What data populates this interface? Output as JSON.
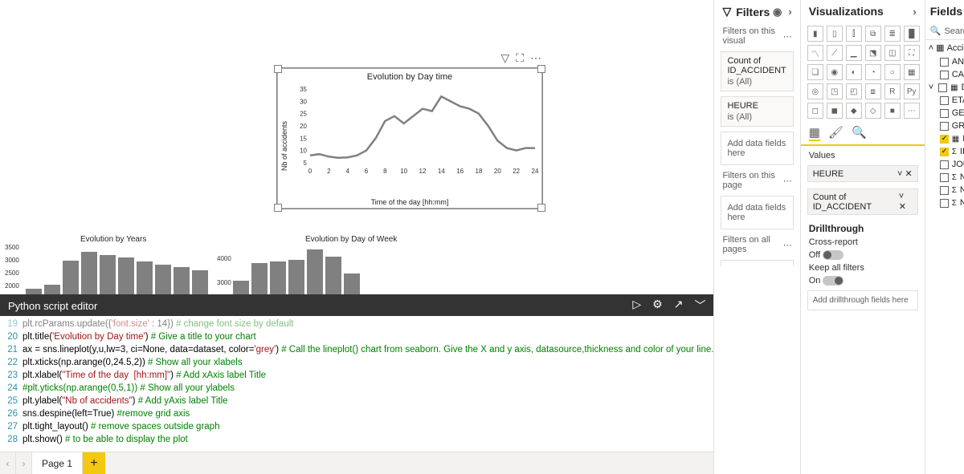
{
  "filters": {
    "title": "Filters",
    "visual_label": "Filters on this visual",
    "page_label": "Filters on this page",
    "all_label": "Filters on all pages",
    "add_placeholder": "Add data fields here",
    "cards": [
      {
        "field": "Count of ID_ACCIDENT",
        "state": "is (All)"
      },
      {
        "field": "HEURE",
        "state": "is (All)"
      }
    ]
  },
  "viz": {
    "title": "Visualizations",
    "values_label": "Values",
    "wells": [
      "HEURE",
      "Count of ID_ACCIDENT"
    ],
    "drill_title": "Drillthrough",
    "cross_label": "Cross-report",
    "cross_state": "Off",
    "keep_label": "Keep all filters",
    "keep_state": "On",
    "drill_placeholder": "Add drillthrough fields here"
  },
  "fields": {
    "title": "Fields",
    "search": "Search",
    "table": "Accident",
    "items": [
      {
        "label": "ANN",
        "checked": false,
        "icon": ""
      },
      {
        "label": "CAU",
        "checked": false,
        "icon": ""
      },
      {
        "label": "DATE",
        "checked": false,
        "icon": "cal",
        "expand": true
      },
      {
        "label": "ETAT",
        "checked": false,
        "icon": ""
      },
      {
        "label": "GEN",
        "checked": false,
        "icon": ""
      },
      {
        "label": "GRO",
        "checked": false,
        "icon": ""
      },
      {
        "label": "HEU",
        "checked": true,
        "icon": "cal"
      },
      {
        "label": "ID_A",
        "checked": true,
        "icon": "sigma"
      },
      {
        "label": "JOU",
        "checked": false,
        "icon": ""
      },
      {
        "label": "NB_E",
        "checked": false,
        "icon": "sigma"
      },
      {
        "label": "NB_E",
        "checked": false,
        "icon": "sigma"
      },
      {
        "label": "NB_T",
        "checked": false,
        "icon": "sigma"
      }
    ]
  },
  "chart": {
    "title": "Evolution by Day time",
    "ylabel": "Nb of accidents",
    "xlabel": "Time of the day  [hh:mm]",
    "yticks": [
      5,
      10,
      15,
      20,
      25,
      30,
      35
    ],
    "xticks": [
      0,
      2,
      4,
      6,
      8,
      10,
      12,
      14,
      16,
      18,
      20,
      22,
      24
    ],
    "ylim": [
      4,
      36
    ],
    "line_color": "#808080",
    "line_width": 2.5,
    "points": [
      [
        0,
        8
      ],
      [
        1,
        8.5
      ],
      [
        2,
        7.5
      ],
      [
        3,
        7
      ],
      [
        4,
        7.2
      ],
      [
        5,
        8
      ],
      [
        6,
        10
      ],
      [
        7,
        15
      ],
      [
        8,
        22
      ],
      [
        9,
        24
      ],
      [
        10,
        21
      ],
      [
        11,
        24
      ],
      [
        12,
        27
      ],
      [
        13,
        26
      ],
      [
        14,
        32
      ],
      [
        15,
        30
      ],
      [
        16,
        28
      ],
      [
        17,
        27
      ],
      [
        18,
        25
      ],
      [
        19,
        20
      ],
      [
        20,
        14
      ],
      [
        21,
        11
      ],
      [
        22,
        10
      ],
      [
        23,
        11
      ],
      [
        24,
        11
      ]
    ]
  },
  "bars_left": {
    "title": "Evolution by Years",
    "yticks": [
      2000,
      2500,
      3000,
      3500
    ],
    "color": "#808080",
    "values": [
      2100,
      2250,
      3100,
      3400,
      3300,
      3200,
      3050,
      2950,
      2850,
      2750
    ]
  },
  "bars_right": {
    "title": "Evolution by Day of Week",
    "yticks": [
      3000,
      4000
    ],
    "color": "#808080",
    "values": [
      3200,
      3700,
      3750,
      3800,
      4100,
      3900,
      3400
    ]
  },
  "editor": {
    "title": "Python script editor",
    "lines": [
      {
        "n": 19,
        "pre": "plt.rcParams.update({",
        "str": "'font.size'",
        "mid": " : 14}) ",
        "cm": "# change font size by default",
        "dim": true
      },
      {
        "n": 20,
        "pre": "plt.title(",
        "str": "'Evolution by Day time'",
        "mid": ") ",
        "cm": "# Give a title to your chart"
      },
      {
        "n": 21,
        "pre": "ax = sns.lineplot(y,u,lw=3, ci=None, data=dataset, color=",
        "str": "'grey'",
        "mid": ") ",
        "cm": "# Call the lineplot() chart from seaborn. Give the X and y axis, datasource,thickness and color of your line."
      },
      {
        "n": 22,
        "pre": "plt.xticks(np.arange(0,24.5,2)) ",
        "str": "",
        "mid": "",
        "cm": "# Show all your xlabels"
      },
      {
        "n": 23,
        "pre": "plt.xlabel(",
        "str": "\"Time of the day  [hh:mm]\"",
        "mid": ") ",
        "cm": "# Add xAxis label Title"
      },
      {
        "n": 24,
        "pre": "",
        "str": "",
        "mid": "",
        "cm": "#plt.yticks(np.arange(0,5,1)) # Show all your ylabels"
      },
      {
        "n": 25,
        "pre": "plt.ylabel(",
        "str": "\"Nb of accidents\"",
        "mid": ") ",
        "cm": "# Add yAxis label Title"
      },
      {
        "n": 26,
        "pre": "sns.despine(left=True) ",
        "str": "",
        "mid": "",
        "cm": "#remove grid axis"
      },
      {
        "n": 27,
        "pre": "plt.tight_layout() ",
        "str": "",
        "mid": "",
        "cm": "# remove spaces outside graph"
      },
      {
        "n": 28,
        "pre": "plt.show() ",
        "str": "",
        "mid": "",
        "cm": "# to be able to display the plot"
      }
    ]
  },
  "page_tab": "Page 1"
}
